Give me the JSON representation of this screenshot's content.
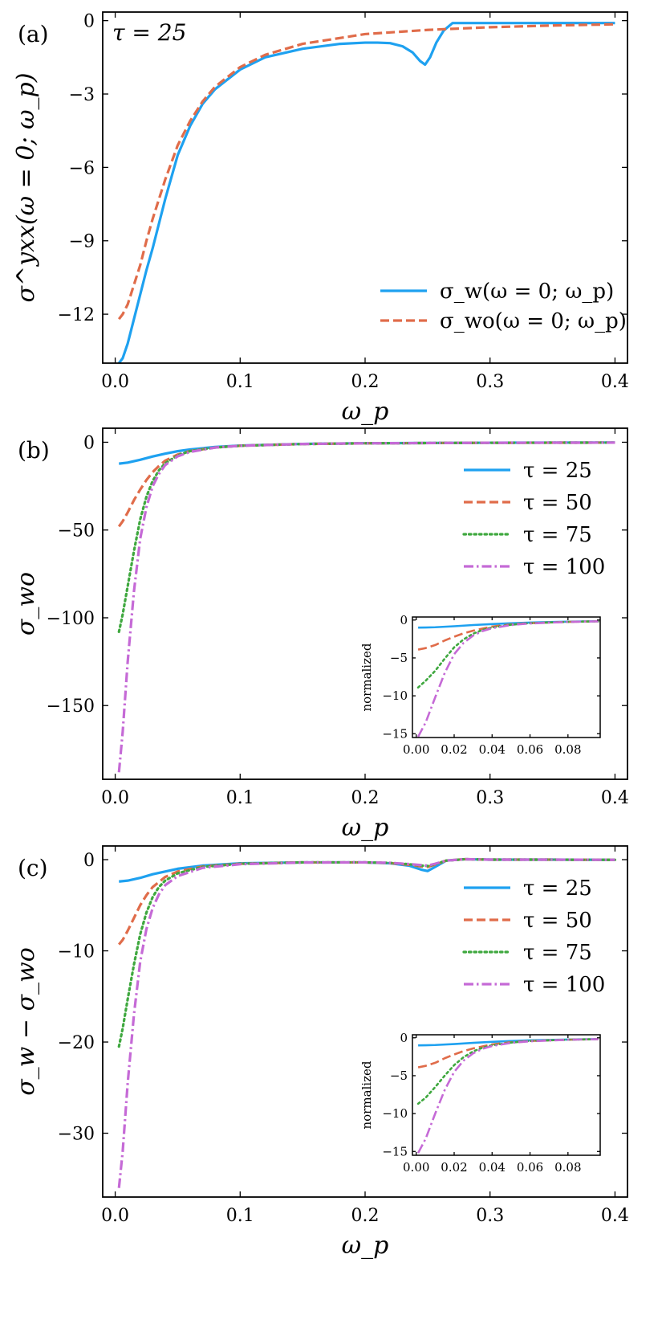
{
  "figure": {
    "panels": [
      "(a)",
      "(b)",
      "(c)"
    ],
    "colors": {
      "tau25": "#1ea1f0",
      "tau50": "#e06c4a",
      "tau75": "#3fa83f",
      "tau100": "#c56ad6"
    }
  },
  "chart_data": [
    {
      "type": "line",
      "panel": "(a)",
      "title": "",
      "annotation": "τ = 25",
      "xlabel": "ω_p",
      "ylabel": "σ^yxx(ω = 0; ω_p)",
      "xlim": [
        -0.01,
        0.41
      ],
      "ylim": [
        -14.0,
        0.35
      ],
      "xticks": [
        0.0,
        0.1,
        0.2,
        0.3,
        0.4
      ],
      "xtick_labels": [
        "0.0",
        "0.1",
        "0.2",
        "0.3",
        "0.4"
      ],
      "yticks": [
        0,
        -3,
        -6,
        -9,
        -12
      ],
      "ytick_labels": [
        "0",
        "−3",
        "−6",
        "−9",
        "−12"
      ],
      "legend_position": "lower-right",
      "series": [
        {
          "name": "σ_w(ω = 0; ω_p)",
          "style": "solid",
          "color": "#1ea1f0",
          "x": [
            0.003,
            0.006,
            0.01,
            0.015,
            0.02,
            0.025,
            0.03,
            0.04,
            0.05,
            0.06,
            0.07,
            0.08,
            0.1,
            0.12,
            0.15,
            0.18,
            0.2,
            0.21,
            0.22,
            0.23,
            0.238,
            0.244,
            0.248,
            0.252,
            0.257,
            0.263,
            0.27,
            0.3,
            0.35,
            0.4
          ],
          "y": [
            -14.0,
            -13.8,
            -13.2,
            -12.2,
            -11.2,
            -10.2,
            -9.3,
            -7.3,
            -5.5,
            -4.3,
            -3.4,
            -2.8,
            -2.0,
            -1.5,
            -1.15,
            -0.95,
            -0.9,
            -0.9,
            -0.92,
            -1.05,
            -1.3,
            -1.65,
            -1.8,
            -1.5,
            -0.9,
            -0.4,
            -0.1,
            -0.1,
            -0.1,
            -0.1
          ]
        },
        {
          "name": "σ_wo(ω = 0; ω_p)",
          "style": "dashed",
          "color": "#e06c4a",
          "x": [
            0.003,
            0.006,
            0.01,
            0.015,
            0.02,
            0.025,
            0.03,
            0.04,
            0.05,
            0.06,
            0.07,
            0.08,
            0.1,
            0.12,
            0.15,
            0.2,
            0.25,
            0.3,
            0.35,
            0.4
          ],
          "y": [
            -12.2,
            -12.0,
            -11.6,
            -10.8,
            -10.0,
            -9.0,
            -8.1,
            -6.5,
            -5.1,
            -4.1,
            -3.3,
            -2.7,
            -1.9,
            -1.4,
            -0.95,
            -0.55,
            -0.38,
            -0.27,
            -0.2,
            -0.15
          ]
        }
      ]
    },
    {
      "type": "line",
      "panel": "(b)",
      "xlabel": "ω_p",
      "ylabel": "σ_wo",
      "xlim": [
        -0.01,
        0.41
      ],
      "ylim": [
        -192,
        8
      ],
      "xticks": [
        0.0,
        0.1,
        0.2,
        0.3,
        0.4
      ],
      "xtick_labels": [
        "0.0",
        "0.1",
        "0.2",
        "0.3",
        "0.4"
      ],
      "yticks": [
        0,
        -50,
        -100,
        -150
      ],
      "ytick_labels": [
        "0",
        "−50",
        "−100",
        "−150"
      ],
      "legend_position": "top-right",
      "series": [
        {
          "name": "τ = 25",
          "style": "solid",
          "color": "#1ea1f0",
          "x": [
            0.003,
            0.01,
            0.02,
            0.03,
            0.04,
            0.05,
            0.06,
            0.08,
            0.1,
            0.15,
            0.2,
            0.3,
            0.4
          ],
          "y": [
            -12.2,
            -11.6,
            -10.0,
            -8.1,
            -6.5,
            -5.1,
            -4.1,
            -2.7,
            -1.9,
            -0.95,
            -0.55,
            -0.27,
            -0.15
          ]
        },
        {
          "name": "τ = 50",
          "style": "dashed",
          "color": "#e06c4a",
          "x": [
            0.003,
            0.006,
            0.01,
            0.015,
            0.02,
            0.025,
            0.03,
            0.035,
            0.04,
            0.05,
            0.06,
            0.08,
            0.1,
            0.15,
            0.2,
            0.3,
            0.4
          ],
          "y": [
            -48,
            -45,
            -40,
            -33,
            -27,
            -21.5,
            -17,
            -13.5,
            -10.5,
            -7,
            -5,
            -3,
            -2,
            -1,
            -0.6,
            -0.3,
            -0.2
          ]
        },
        {
          "name": "τ = 75",
          "style": "dotted",
          "color": "#3fa83f",
          "x": [
            0.003,
            0.006,
            0.01,
            0.015,
            0.02,
            0.025,
            0.03,
            0.035,
            0.04,
            0.05,
            0.06,
            0.08,
            0.1,
            0.15,
            0.2,
            0.3,
            0.4
          ],
          "y": [
            -108,
            -98,
            -82,
            -62,
            -44,
            -31,
            -22,
            -16,
            -12,
            -7.5,
            -5,
            -3,
            -2,
            -1,
            -0.6,
            -0.3,
            -0.2
          ]
        },
        {
          "name": "τ = 100",
          "style": "dashdot",
          "color": "#c56ad6",
          "x": [
            0.003,
            0.006,
            0.01,
            0.015,
            0.02,
            0.025,
            0.03,
            0.035,
            0.04,
            0.05,
            0.06,
            0.08,
            0.1,
            0.15,
            0.2,
            0.3,
            0.4
          ],
          "y": [
            -188,
            -165,
            -125,
            -85,
            -55,
            -37,
            -25,
            -18,
            -13,
            -8,
            -5.5,
            -3,
            -2,
            -1,
            -0.6,
            -0.3,
            -0.2
          ]
        }
      ],
      "inset": {
        "ylabel": "normalized",
        "xlim": [
          -0.002,
          0.097
        ],
        "ylim": [
          -15.5,
          0.4
        ],
        "xticks": [
          0.0,
          0.02,
          0.04,
          0.06,
          0.08
        ],
        "xtick_labels": [
          "0.00",
          "0.02",
          "0.04",
          "0.06",
          "0.08"
        ],
        "yticks": [
          0,
          -5,
          -10,
          -15
        ],
        "ytick_labels": [
          "0",
          "−5",
          "−10",
          "−15"
        ],
        "series": [
          {
            "name": "τ = 25",
            "style": "solid",
            "color": "#1ea1f0",
            "x": [
              0.001,
              0.005,
              0.01,
              0.02,
              0.03,
              0.04,
              0.05,
              0.06,
              0.07,
              0.08,
              0.09,
              0.096
            ],
            "y": [
              -1.0,
              -0.98,
              -0.95,
              -0.82,
              -0.66,
              -0.53,
              -0.42,
              -0.34,
              -0.27,
              -0.22,
              -0.18,
              -0.16
            ]
          },
          {
            "name": "τ = 50",
            "style": "dashed",
            "color": "#e06c4a",
            "x": [
              0.001,
              0.005,
              0.01,
              0.015,
              0.02,
              0.025,
              0.03,
              0.04,
              0.05,
              0.06,
              0.08,
              0.096
            ],
            "y": [
              -3.9,
              -3.7,
              -3.3,
              -2.7,
              -2.2,
              -1.75,
              -1.4,
              -0.86,
              -0.57,
              -0.41,
              -0.24,
              -0.17
            ]
          },
          {
            "name": "τ = 75",
            "style": "dotted",
            "color": "#3fa83f",
            "x": [
              0.001,
              0.005,
              0.01,
              0.015,
              0.02,
              0.025,
              0.03,
              0.035,
              0.04,
              0.05,
              0.06,
              0.08,
              0.096
            ],
            "y": [
              -8.9,
              -8.0,
              -6.7,
              -5.1,
              -3.6,
              -2.55,
              -1.8,
              -1.3,
              -0.98,
              -0.62,
              -0.41,
              -0.24,
              -0.17
            ]
          },
          {
            "name": "τ = 100",
            "style": "dashdot",
            "color": "#c56ad6",
            "x": [
              0.001,
              0.005,
              0.01,
              0.015,
              0.02,
              0.025,
              0.03,
              0.035,
              0.04,
              0.05,
              0.06,
              0.08,
              0.096
            ],
            "y": [
              -15.4,
              -13.5,
              -10.2,
              -7.0,
              -4.5,
              -3.0,
              -2.05,
              -1.45,
              -1.07,
              -0.66,
              -0.45,
              -0.25,
              -0.17
            ]
          }
        ]
      }
    },
    {
      "type": "line",
      "panel": "(c)",
      "xlabel": "ω_p",
      "ylabel": "σ_w − σ_wo",
      "xlim": [
        -0.01,
        0.41
      ],
      "ylim": [
        -37,
        1.5
      ],
      "xticks": [
        0.0,
        0.1,
        0.2,
        0.3,
        0.4
      ],
      "xtick_labels": [
        "0.0",
        "0.1",
        "0.2",
        "0.3",
        "0.4"
      ],
      "yticks": [
        0,
        -10,
        -20,
        -30
      ],
      "ytick_labels": [
        "0",
        "−10",
        "−20",
        "−30"
      ],
      "legend_position": "top-right",
      "series": [
        {
          "name": "τ = 25",
          "style": "solid",
          "color": "#1ea1f0",
          "x": [
            0.003,
            0.01,
            0.02,
            0.03,
            0.05,
            0.07,
            0.1,
            0.15,
            0.2,
            0.22,
            0.235,
            0.245,
            0.25,
            0.256,
            0.265,
            0.28,
            0.3,
            0.35,
            0.4
          ],
          "y": [
            -2.4,
            -2.3,
            -2.0,
            -1.6,
            -1.0,
            -0.65,
            -0.4,
            -0.3,
            -0.3,
            -0.4,
            -0.65,
            -1.1,
            -1.25,
            -0.8,
            -0.1,
            0.05,
            0.0,
            0.0,
            -0.02
          ]
        },
        {
          "name": "τ = 50",
          "style": "dashed",
          "color": "#e06c4a",
          "x": [
            0.003,
            0.006,
            0.01,
            0.015,
            0.02,
            0.025,
            0.03,
            0.04,
            0.05,
            0.07,
            0.1,
            0.15,
            0.2,
            0.22,
            0.235,
            0.245,
            0.25,
            0.256,
            0.265,
            0.28,
            0.3,
            0.35,
            0.4
          ],
          "y": [
            -9.3,
            -8.8,
            -7.8,
            -6.4,
            -5.0,
            -3.9,
            -3.0,
            -1.9,
            -1.3,
            -0.75,
            -0.45,
            -0.3,
            -0.3,
            -0.38,
            -0.55,
            -0.75,
            -0.8,
            -0.55,
            -0.1,
            0.05,
            0.0,
            0.0,
            -0.02
          ]
        },
        {
          "name": "τ = 75",
          "style": "dotted",
          "color": "#3fa83f",
          "x": [
            0.003,
            0.006,
            0.01,
            0.015,
            0.02,
            0.025,
            0.03,
            0.035,
            0.04,
            0.05,
            0.07,
            0.1,
            0.15,
            0.2,
            0.22,
            0.235,
            0.245,
            0.25,
            0.256,
            0.265,
            0.28,
            0.3,
            0.35,
            0.4
          ],
          "y": [
            -20.5,
            -18.5,
            -15.3,
            -11.5,
            -8.2,
            -5.8,
            -4.1,
            -3.0,
            -2.3,
            -1.5,
            -0.8,
            -0.45,
            -0.3,
            -0.3,
            -0.36,
            -0.5,
            -0.65,
            -0.7,
            -0.5,
            -0.1,
            0.05,
            0.0,
            0.0,
            -0.02
          ]
        },
        {
          "name": "τ = 100",
          "style": "dashdot",
          "color": "#c56ad6",
          "x": [
            0.003,
            0.006,
            0.01,
            0.015,
            0.02,
            0.025,
            0.03,
            0.035,
            0.04,
            0.05,
            0.07,
            0.1,
            0.15,
            0.2,
            0.22,
            0.235,
            0.245,
            0.25,
            0.256,
            0.265,
            0.28,
            0.3,
            0.35,
            0.4
          ],
          "y": [
            -36,
            -32,
            -24.5,
            -17,
            -11.2,
            -7.6,
            -5.3,
            -3.8,
            -2.8,
            -1.8,
            -0.9,
            -0.5,
            -0.32,
            -0.3,
            -0.35,
            -0.48,
            -0.6,
            -0.65,
            -0.45,
            -0.1,
            0.05,
            0.0,
            0.0,
            -0.02
          ]
        }
      ],
      "inset": {
        "ylabel": "normalized",
        "xlim": [
          -0.002,
          0.097
        ],
        "ylim": [
          -15.5,
          0.4
        ],
        "xticks": [
          0.0,
          0.02,
          0.04,
          0.06,
          0.08
        ],
        "xtick_labels": [
          "0.00",
          "0.02",
          "0.04",
          "0.06",
          "0.08"
        ],
        "yticks": [
          0,
          -5,
          -10,
          -15
        ],
        "ytick_labels": [
          "0",
          "−5",
          "−10",
          "−15"
        ],
        "series": [
          {
            "name": "τ = 25",
            "style": "solid",
            "color": "#1ea1f0",
            "x": [
              0.001,
              0.005,
              0.01,
              0.02,
              0.03,
              0.04,
              0.05,
              0.06,
              0.07,
              0.08,
              0.09,
              0.096
            ],
            "y": [
              -1.0,
              -0.98,
              -0.95,
              -0.83,
              -0.67,
              -0.53,
              -0.42,
              -0.34,
              -0.28,
              -0.23,
              -0.19,
              -0.17
            ]
          },
          {
            "name": "τ = 50",
            "style": "dashed",
            "color": "#e06c4a",
            "x": [
              0.001,
              0.005,
              0.01,
              0.015,
              0.02,
              0.025,
              0.03,
              0.04,
              0.05,
              0.06,
              0.08,
              0.096
            ],
            "y": [
              -3.9,
              -3.7,
              -3.3,
              -2.7,
              -2.2,
              -1.75,
              -1.4,
              -0.87,
              -0.58,
              -0.42,
              -0.25,
              -0.18
            ]
          },
          {
            "name": "τ = 75",
            "style": "dotted",
            "color": "#3fa83f",
            "x": [
              0.001,
              0.005,
              0.01,
              0.015,
              0.02,
              0.025,
              0.03,
              0.035,
              0.04,
              0.05,
              0.06,
              0.08,
              0.096
            ],
            "y": [
              -8.7,
              -7.9,
              -6.5,
              -5.0,
              -3.6,
              -2.55,
              -1.8,
              -1.3,
              -0.98,
              -0.63,
              -0.42,
              -0.25,
              -0.18
            ]
          },
          {
            "name": "τ = 100",
            "style": "dashdot",
            "color": "#c56ad6",
            "x": [
              0.001,
              0.005,
              0.01,
              0.015,
              0.02,
              0.025,
              0.03,
              0.035,
              0.04,
              0.05,
              0.06,
              0.08,
              0.096
            ],
            "y": [
              -15.2,
              -13.3,
              -10.0,
              -6.9,
              -4.5,
              -3.0,
              -2.05,
              -1.45,
              -1.08,
              -0.67,
              -0.46,
              -0.26,
              -0.18
            ]
          }
        ]
      }
    }
  ]
}
